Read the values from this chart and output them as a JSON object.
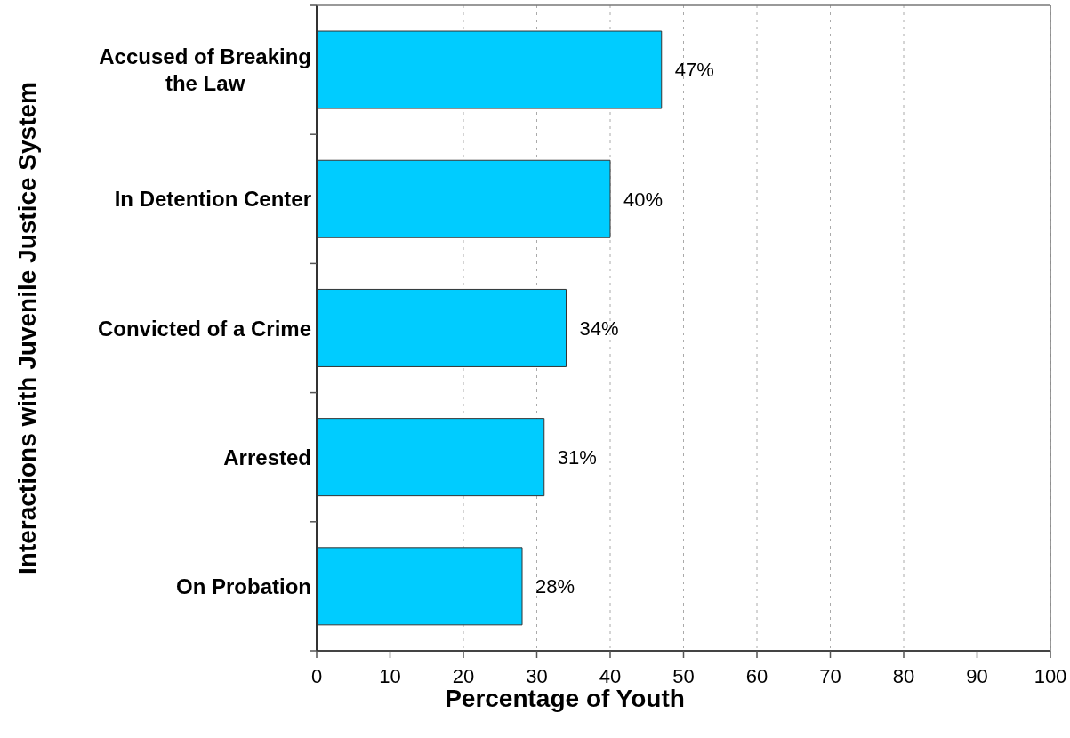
{
  "chart_data": {
    "type": "bar",
    "orientation": "horizontal",
    "xlabel": "Percentage of Youth",
    "ylabel": "Interactions with Juvenile Justice System",
    "categories": [
      "Accused of Breaking the Law",
      "In Detention Center",
      "Convicted of a Crime",
      "Arrested",
      "On Probation"
    ],
    "values": [
      47,
      40,
      34,
      31,
      28
    ],
    "value_labels": [
      "47%",
      "40%",
      "34%",
      "31%",
      "28%"
    ],
    "color": "#00ccff",
    "xlim": [
      0,
      100
    ],
    "xticks": [
      0,
      10,
      20,
      30,
      40,
      50,
      60,
      70,
      80,
      90,
      100
    ],
    "grid": "x"
  }
}
